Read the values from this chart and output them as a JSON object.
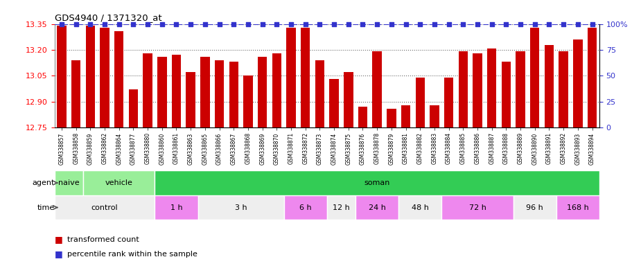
{
  "title": "GDS4940 / 1371320_at",
  "samples": [
    "GSM338857",
    "GSM338858",
    "GSM338859",
    "GSM338862",
    "GSM338864",
    "GSM338877",
    "GSM338880",
    "GSM338860",
    "GSM338861",
    "GSM338863",
    "GSM338865",
    "GSM338866",
    "GSM338867",
    "GSM338868",
    "GSM338869",
    "GSM338870",
    "GSM338871",
    "GSM338872",
    "GSM338873",
    "GSM338874",
    "GSM338875",
    "GSM338876",
    "GSM338878",
    "GSM338879",
    "GSM338881",
    "GSM338882",
    "GSM338883",
    "GSM338884",
    "GSM338885",
    "GSM338886",
    "GSM338887",
    "GSM338888",
    "GSM338889",
    "GSM338890",
    "GSM338891",
    "GSM338892",
    "GSM338893",
    "GSM338894"
  ],
  "values": [
    13.34,
    13.14,
    13.34,
    13.33,
    13.31,
    12.97,
    13.18,
    13.16,
    13.17,
    13.07,
    13.16,
    13.14,
    13.13,
    13.05,
    13.16,
    13.18,
    13.33,
    13.33,
    13.14,
    13.03,
    13.07,
    12.87,
    13.19,
    12.86,
    12.88,
    13.04,
    12.88,
    13.04,
    13.19,
    13.18,
    13.21,
    13.13,
    13.19,
    13.33,
    13.23,
    13.19,
    13.26,
    13.33
  ],
  "ymin": 12.75,
  "ymax": 13.35,
  "yticks_left": [
    12.75,
    12.9,
    13.05,
    13.2,
    13.35
  ],
  "yticks_right": [
    0,
    25,
    50,
    75,
    100
  ],
  "bar_color": "#cc0000",
  "percentile_color": "#3333cc",
  "agent_naive_color": "#99ee99",
  "agent_vehicle_color": "#99ee99",
  "agent_soman_color": "#33cc55",
  "time_control_color": "#f0f0f0",
  "time_alt_color": "#ee88ee",
  "time_alt2_color": "#cc77cc",
  "agent_groups": [
    {
      "label": "naive",
      "start": 0,
      "end": 2,
      "color": "#99ee99"
    },
    {
      "label": "vehicle",
      "start": 2,
      "end": 7,
      "color": "#99ee99"
    },
    {
      "label": "soman",
      "start": 7,
      "end": 38,
      "color": "#33cc55"
    }
  ],
  "time_groups": [
    {
      "label": "control",
      "start": 0,
      "end": 7,
      "color": "#eeeeee"
    },
    {
      "label": "1 h",
      "start": 7,
      "end": 10,
      "color": "#ee88ee"
    },
    {
      "label": "3 h",
      "start": 10,
      "end": 16,
      "color": "#eeeeee"
    },
    {
      "label": "6 h",
      "start": 16,
      "end": 19,
      "color": "#ee88ee"
    },
    {
      "label": "12 h",
      "start": 19,
      "end": 21,
      "color": "#eeeeee"
    },
    {
      "label": "24 h",
      "start": 21,
      "end": 24,
      "color": "#ee88ee"
    },
    {
      "label": "48 h",
      "start": 24,
      "end": 27,
      "color": "#eeeeee"
    },
    {
      "label": "72 h",
      "start": 27,
      "end": 32,
      "color": "#ee88ee"
    },
    {
      "label": "96 h",
      "start": 32,
      "end": 35,
      "color": "#eeeeee"
    },
    {
      "label": "168 h",
      "start": 35,
      "end": 38,
      "color": "#ee88ee"
    }
  ],
  "legend_items": [
    {
      "color": "#cc0000",
      "marker": "s",
      "label": "transformed count"
    },
    {
      "color": "#3333cc",
      "marker": "s",
      "label": "percentile rank within the sample"
    }
  ]
}
